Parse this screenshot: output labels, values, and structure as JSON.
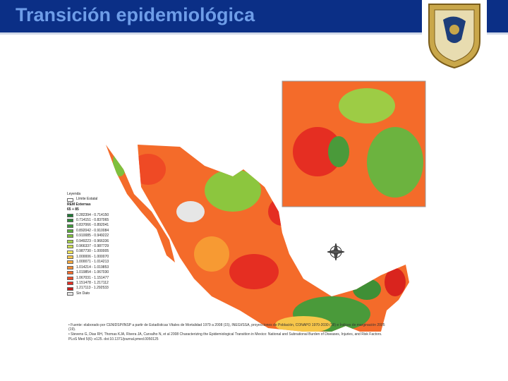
{
  "header": {
    "title": "Transición epidemiológica"
  },
  "legend": {
    "title": "Leyenda",
    "limit": "Límite Estatal",
    "layer": "REM Externas",
    "age": "65 + 85",
    "items": [
      {
        "label": "0.282394 - 0.714150",
        "color": "#1f7a35"
      },
      {
        "label": "0.714151 - 0.837065",
        "color": "#2f8a38"
      },
      {
        "label": "0.837066 - 0.892041",
        "color": "#3f9a3a"
      },
      {
        "label": "0.892042 - 0.910084",
        "color": "#5aab3c"
      },
      {
        "label": "0.910085 - 0.949222",
        "color": "#7fbf3d"
      },
      {
        "label": "0.949223 - 0.966336",
        "color": "#a5d146"
      },
      {
        "label": "0.966337 - 0.987729",
        "color": "#cddc4f"
      },
      {
        "label": "0.987730 - 1.000005",
        "color": "#f2e65a"
      },
      {
        "label": "1.000006 - 1.000070",
        "color": "#f7c64a"
      },
      {
        "label": "1.000071 - 1.014213",
        "color": "#f7a93c"
      },
      {
        "label": "1.014214 - 1.019853",
        "color": "#f48c33"
      },
      {
        "label": "1.019854 - 1.067030",
        "color": "#f46b2a"
      },
      {
        "label": "1.067031 - 1.151477",
        "color": "#ef4a25"
      },
      {
        "label": "1.151478 - 1.217112",
        "color": "#e52e22"
      },
      {
        "label": "1.217113 - 1.292533",
        "color": "#c81d1d"
      }
    ],
    "no_data": {
      "label": "Sin Dato",
      "color": "#e6e6e6"
    }
  },
  "notes": [
    "Fuente: elaborado por CENIDSP/INSP a partir de Estadísticas Vitales de Mortalidad 1979 a 2008 (15), INEGI/SSA, proyecciones de Población, CONAPO 1970-2030 (18) e Índices de marginación 2005 (19).",
    "Stevens G, Dias RH, Thomas KJA, Rivera JA, Carvalho N, et al 2008 Characterizing the Epidemiological Transition in Mexico: National and Subnational Burden of Diseases, Injuries, and Risk Factors. PLoS Med 5(6): e125. doi:10.1371/journal.pmed.0050125"
  ]
}
